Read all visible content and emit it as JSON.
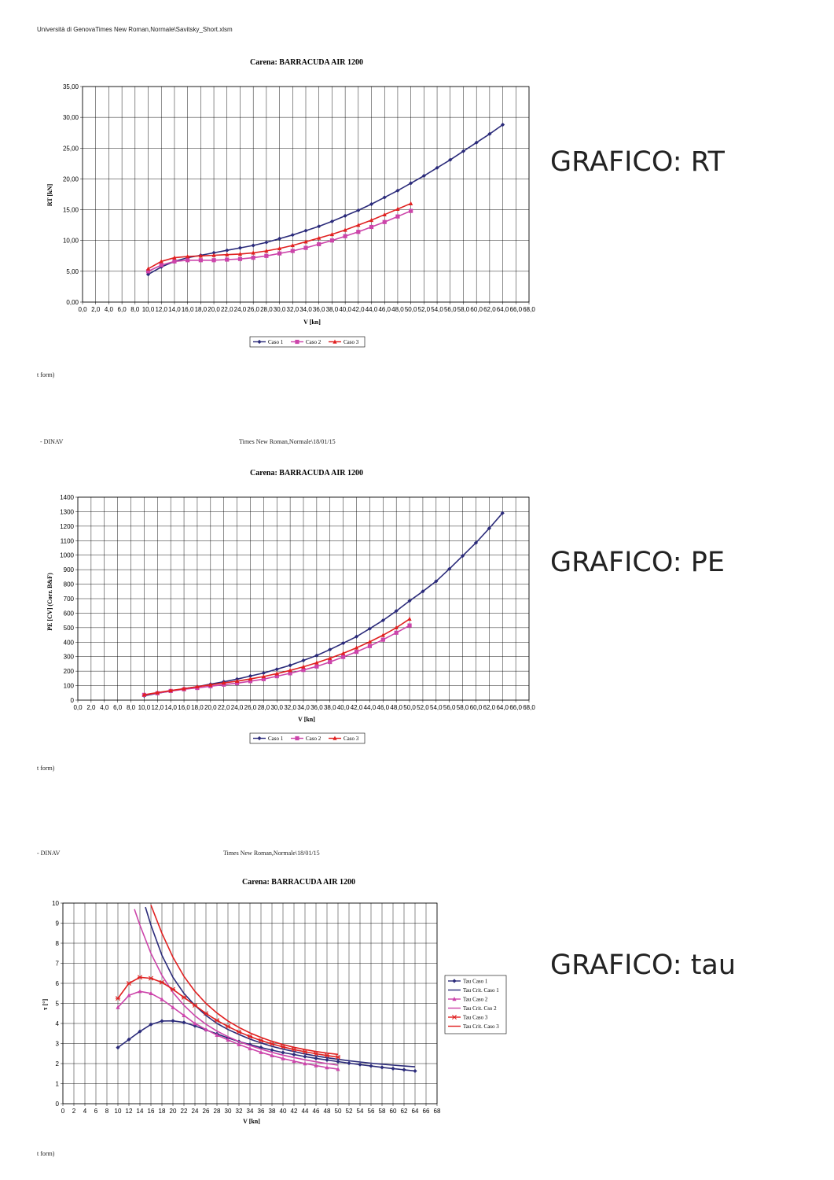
{
  "page": {
    "header_top": "Università di GenovaTimes New Roman,Normale\\Savitsky_Short.xlsm",
    "page2_left": "- DINAV",
    "page2_center": "Times New Roman,Normale\\18/01/15",
    "page3_left": "- DINAV",
    "page3_center": "Times New Roman,Normale\\18/01/15",
    "footer1": "t form)",
    "footer2": "t form)",
    "footer3": "t form)",
    "label_rt": "GRAFICO: RT",
    "label_pe": "GRAFICO: PE",
    "label_tau": "GRAFICO: tau"
  },
  "chart_data": [
    {
      "type": "line",
      "title": "Carena: BARRACUDA AIR 1200",
      "xlabel": "V [kn]",
      "ylabel": "RT [kN]",
      "xlim": [
        0,
        68
      ],
      "ylim": [
        0,
        35
      ],
      "xticks": [
        "0,0",
        "2,0",
        "4,0",
        "6,0",
        "8,0",
        "10,0",
        "12,0",
        "14,0",
        "16,0",
        "18,0",
        "20,0",
        "22,0",
        "24,0",
        "26,0",
        "28,0",
        "30,0",
        "32,0",
        "34,0",
        "36,0",
        "38,0",
        "40,0",
        "42,0",
        "44,0",
        "46,0",
        "48,0",
        "50,0",
        "52,0",
        "54,0",
        "56,0",
        "58,0",
        "60,0",
        "62,0",
        "64,0",
        "66,0",
        "68,0"
      ],
      "yticks": [
        "0,00",
        "5,00",
        "10,00",
        "15,00",
        "20,00",
        "25,00",
        "30,00",
        "35,00"
      ],
      "grid": true,
      "legend": "bottom",
      "series": [
        {
          "name": "Caso 1",
          "color": "#2b2b7a",
          "marker": "diamond",
          "x": [
            10,
            12,
            14,
            16,
            18,
            20,
            22,
            24,
            26,
            28,
            30,
            32,
            34,
            36,
            38,
            40,
            42,
            44,
            46,
            48,
            50,
            52,
            54,
            56,
            58,
            60,
            62,
            64
          ],
          "y": [
            4.5,
            5.7,
            6.6,
            7.2,
            7.6,
            8.0,
            8.4,
            8.8,
            9.2,
            9.7,
            10.3,
            10.9,
            11.6,
            12.3,
            13.1,
            14.0,
            14.9,
            15.9,
            17.0,
            18.1,
            19.3,
            20.5,
            21.8,
            23.1,
            24.5,
            25.9,
            27.3,
            28.8
          ]
        },
        {
          "name": "Caso 2",
          "color": "#cc44aa",
          "marker": "square",
          "x": [
            10,
            12,
            14,
            16,
            18,
            20,
            22,
            24,
            26,
            28,
            30,
            32,
            34,
            36,
            38,
            40,
            42,
            44,
            46,
            48,
            50
          ],
          "y": [
            5.0,
            6.0,
            6.6,
            6.8,
            6.8,
            6.8,
            6.9,
            7.0,
            7.2,
            7.5,
            7.9,
            8.3,
            8.8,
            9.4,
            10.0,
            10.7,
            11.4,
            12.2,
            13.0,
            13.9,
            14.8
          ]
        },
        {
          "name": "Caso 3",
          "color": "#e02020",
          "marker": "triangle",
          "x": [
            10,
            12,
            14,
            16,
            18,
            20,
            22,
            24,
            26,
            28,
            30,
            32,
            34,
            36,
            38,
            40,
            42,
            44,
            46,
            48,
            50
          ],
          "y": [
            5.4,
            6.6,
            7.2,
            7.4,
            7.5,
            7.6,
            7.7,
            7.8,
            8.0,
            8.3,
            8.7,
            9.2,
            9.8,
            10.4,
            11.0,
            11.7,
            12.5,
            13.3,
            14.2,
            15.1,
            16.0
          ]
        }
      ]
    },
    {
      "type": "line",
      "title": "Carena: BARRACUDA AIR 1200",
      "xlabel": "V [kn]",
      "ylabel": "PE [CV] (Corr. B&F)",
      "xlim": [
        0,
        68
      ],
      "ylim": [
        0,
        1400
      ],
      "xticks": [
        "0,0",
        "2,0",
        "4,0",
        "6,0",
        "8,0",
        "10,0",
        "12,0",
        "14,0",
        "16,0",
        "18,0",
        "20,0",
        "22,0",
        "24,0",
        "26,0",
        "28,0",
        "30,0",
        "32,0",
        "34,0",
        "36,0",
        "38,0",
        "40,0",
        "42,0",
        "44,0",
        "46,0",
        "48,0",
        "50,0",
        "52,0",
        "54,0",
        "56,0",
        "58,0",
        "60,0",
        "62,0",
        "64,0",
        "66,0",
        "68,0"
      ],
      "yticks": [
        "0",
        "100",
        "200",
        "300",
        "400",
        "500",
        "600",
        "700",
        "800",
        "900",
        "1000",
        "1100",
        "1200",
        "1300",
        "1400"
      ],
      "grid": true,
      "legend": "bottom",
      "series": [
        {
          "name": "Caso 1",
          "color": "#2b2b7a",
          "marker": "diamond",
          "x": [
            10,
            12,
            14,
            16,
            18,
            20,
            22,
            24,
            26,
            28,
            30,
            32,
            34,
            36,
            38,
            40,
            42,
            44,
            46,
            48,
            50,
            52,
            54,
            56,
            58,
            60,
            62,
            64
          ],
          "y": [
            30,
            47,
            63,
            79,
            93,
            110,
            127,
            145,
            166,
            187,
            213,
            240,
            274,
            308,
            349,
            393,
            438,
            493,
            550,
            615,
            685,
            750,
            820,
            905,
            995,
            1085,
            1185,
            1290
          ]
        },
        {
          "name": "Caso 2",
          "color": "#cc44aa",
          "marker": "square",
          "x": [
            10,
            12,
            14,
            16,
            18,
            20,
            22,
            24,
            26,
            28,
            30,
            32,
            34,
            36,
            38,
            40,
            42,
            44,
            46,
            48,
            50
          ],
          "y": [
            36,
            48,
            63,
            75,
            84,
            96,
            107,
            117,
            131,
            145,
            165,
            185,
            208,
            232,
            263,
            298,
            333,
            373,
            417,
            465,
            515
          ]
        },
        {
          "name": "Caso 3",
          "color": "#e02020",
          "marker": "triangle",
          "x": [
            10,
            12,
            14,
            16,
            18,
            20,
            22,
            24,
            26,
            28,
            30,
            32,
            34,
            36,
            38,
            40,
            42,
            44,
            46,
            48,
            50
          ],
          "y": [
            37,
            52,
            66,
            79,
            93,
            105,
            119,
            131,
            146,
            163,
            183,
            205,
            230,
            258,
            289,
            323,
            361,
            402,
            448,
            500,
            560
          ]
        }
      ]
    },
    {
      "type": "line",
      "title": "Carena: BARRACUDA AIR 1200",
      "xlabel": "V [kn]",
      "ylabel": "τ [°]",
      "xlim": [
        0,
        68
      ],
      "ylim": [
        0,
        10
      ],
      "xticks": [
        "0",
        "2",
        "4",
        "6",
        "8",
        "10",
        "12",
        "14",
        "16",
        "18",
        "20",
        "22",
        "24",
        "26",
        "28",
        "30",
        "32",
        "34",
        "36",
        "38",
        "40",
        "42",
        "44",
        "46",
        "48",
        "50",
        "52",
        "54",
        "56",
        "58",
        "60",
        "62",
        "64",
        "66",
        "68"
      ],
      "yticks": [
        "0",
        "1",
        "2",
        "3",
        "4",
        "5",
        "6",
        "7",
        "8",
        "9",
        "10"
      ],
      "grid": true,
      "legend": "right",
      "series": [
        {
          "name": "Tau Caso 1",
          "color": "#2b2b7a",
          "marker": "diamond",
          "x": [
            10,
            12,
            14,
            16,
            18,
            20,
            22,
            24,
            26,
            28,
            30,
            32,
            34,
            36,
            38,
            40,
            42,
            44,
            46,
            48,
            50,
            52,
            54,
            56,
            58,
            60,
            62,
            64
          ],
          "y": [
            2.8,
            3.2,
            3.6,
            3.95,
            4.12,
            4.13,
            4.05,
            3.88,
            3.68,
            3.48,
            3.28,
            3.1,
            2.95,
            2.8,
            2.67,
            2.55,
            2.45,
            2.35,
            2.26,
            2.18,
            2.1,
            2.02,
            1.95,
            1.88,
            1.81,
            1.75,
            1.69,
            1.63
          ]
        },
        {
          "name": "Tau Crit. Caso 1",
          "color": "#2b2b7a",
          "marker": "none",
          "x": [
            15,
            16,
            18,
            20,
            22,
            24,
            26,
            28,
            30,
            32,
            34,
            36,
            38,
            40,
            42,
            44,
            46,
            48,
            50,
            52,
            54,
            56,
            58,
            60,
            62,
            64
          ],
          "y": [
            9.8,
            8.9,
            7.4,
            6.3,
            5.5,
            4.9,
            4.4,
            4.0,
            3.7,
            3.45,
            3.22,
            3.03,
            2.86,
            2.72,
            2.6,
            2.48,
            2.38,
            2.29,
            2.21,
            2.14,
            2.08,
            2.02,
            1.97,
            1.92,
            1.88,
            1.84
          ]
        },
        {
          "name": "Tau Caso 2",
          "color": "#cc44aa",
          "marker": "triangle",
          "x": [
            10,
            12,
            14,
            16,
            18,
            20,
            22,
            24,
            26,
            28,
            30,
            32,
            34,
            36,
            38,
            40,
            42,
            44,
            46,
            48,
            50
          ],
          "y": [
            4.8,
            5.4,
            5.6,
            5.5,
            5.2,
            4.8,
            4.4,
            4.0,
            3.7,
            3.42,
            3.18,
            2.95,
            2.75,
            2.56,
            2.4,
            2.25,
            2.12,
            2.0,
            1.9,
            1.8,
            1.72
          ]
        },
        {
          "name": "Tau Crit. Cso 2",
          "color": "#cc44aa",
          "marker": "none",
          "x": [
            13,
            14,
            16,
            18,
            20,
            22,
            24,
            26,
            28,
            30,
            32,
            34,
            36,
            38,
            40,
            42,
            44,
            46,
            48,
            50
          ],
          "y": [
            9.7,
            8.9,
            7.5,
            6.4,
            5.55,
            4.9,
            4.38,
            3.96,
            3.62,
            3.34,
            3.1,
            2.9,
            2.72,
            2.56,
            2.42,
            2.3,
            2.19,
            2.09,
            2.0,
            1.92
          ]
        },
        {
          "name": "Tau Caso 3",
          "color": "#e02020",
          "marker": "star",
          "x": [
            10,
            12,
            14,
            16,
            18,
            20,
            22,
            24,
            26,
            28,
            30,
            32,
            34,
            36,
            38,
            40,
            42,
            44,
            46,
            48,
            50
          ],
          "y": [
            5.25,
            6.0,
            6.3,
            6.25,
            6.05,
            5.7,
            5.3,
            4.9,
            4.5,
            4.15,
            3.85,
            3.58,
            3.35,
            3.15,
            2.98,
            2.83,
            2.7,
            2.59,
            2.49,
            2.4,
            2.32
          ]
        },
        {
          "name": "Tau Crit. Caso 3",
          "color": "#e02020",
          "marker": "none",
          "x": [
            16,
            17,
            18,
            20,
            22,
            24,
            26,
            28,
            30,
            32,
            34,
            36,
            38,
            40,
            42,
            44,
            46,
            48,
            50
          ],
          "y": [
            9.9,
            9.2,
            8.5,
            7.3,
            6.35,
            5.6,
            5.0,
            4.52,
            4.12,
            3.8,
            3.53,
            3.3,
            3.11,
            2.95,
            2.81,
            2.7,
            2.6,
            2.52,
            2.46
          ]
        }
      ]
    }
  ]
}
